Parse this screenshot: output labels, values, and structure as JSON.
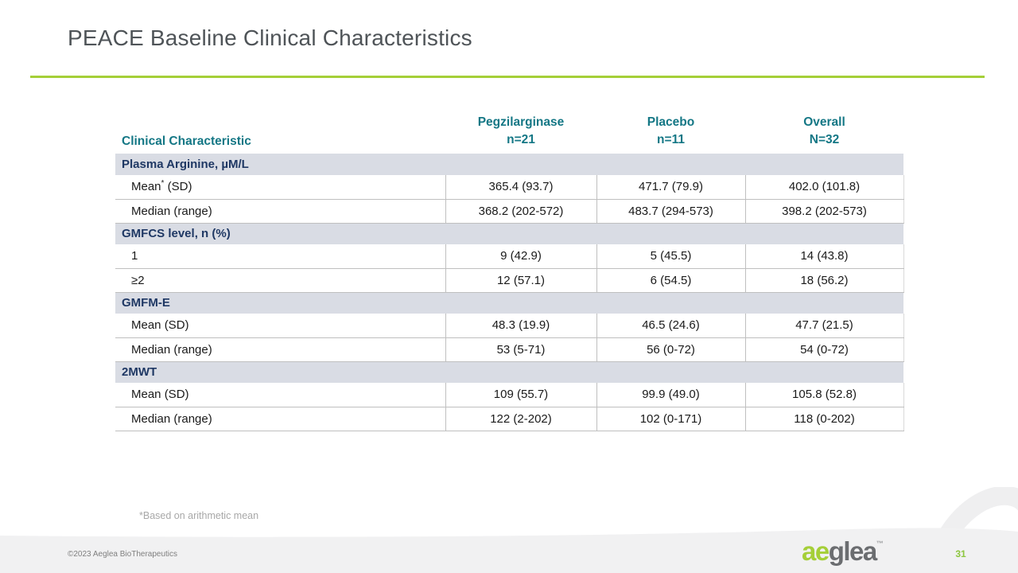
{
  "slide": {
    "title": "PEACE Baseline Clinical Characteristics",
    "footnote": "*Based on arithmetic mean",
    "copyright": "©2023 Aeglea BioTherapeutics",
    "page_number": "31",
    "logo": {
      "prefix": "ae",
      "suffix": "glea",
      "tm": "™"
    }
  },
  "colors": {
    "accent_green": "#a5cf38",
    "header_teal": "#147785",
    "section_navy": "#1f3864",
    "section_bg": "#d9dce4",
    "title_gray": "#4f5458",
    "footer_bg": "#f1f1f2",
    "border_gray": "#bfbfbf",
    "page_number_green": "#8dc63f"
  },
  "table": {
    "header": {
      "col0": "Clinical Characteristic",
      "col1": {
        "line1": "Pegzilarginase",
        "line2": "n=21"
      },
      "col2": {
        "line1": "Placebo",
        "line2": "n=11"
      },
      "col3": {
        "line1": "Overall",
        "line2": "N=32"
      }
    },
    "sections": [
      {
        "header": "Plasma Arginine, µM/L",
        "rows": [
          {
            "label": "Mean",
            "sup": "*",
            "label_post": " (SD)",
            "values": [
              "365.4 (93.7)",
              "471.7 (79.9)",
              "402.0 (101.8)"
            ]
          },
          {
            "label": "Median (range)",
            "sup": "",
            "label_post": "",
            "values": [
              "368.2 (202-572)",
              "483.7 (294-573)",
              "398.2 (202-573)"
            ]
          }
        ]
      },
      {
        "header": "GMFCS level, n (%)",
        "rows": [
          {
            "label": "1",
            "sup": "",
            "label_post": "",
            "values": [
              "9 (42.9)",
              "5 (45.5)",
              "14 (43.8)"
            ]
          },
          {
            "label": "≥2",
            "sup": "",
            "label_post": "",
            "values": [
              "12 (57.1)",
              "6 (54.5)",
              "18 (56.2)"
            ]
          }
        ]
      },
      {
        "header": "GMFM-E",
        "rows": [
          {
            "label": "Mean (SD)",
            "sup": "",
            "label_post": "",
            "values": [
              "48.3 (19.9)",
              "46.5 (24.6)",
              "47.7 (21.5)"
            ]
          },
          {
            "label": "Median (range)",
            "sup": "",
            "label_post": "",
            "values": [
              "53 (5-71)",
              "56 (0-72)",
              "54 (0-72)"
            ]
          }
        ]
      },
      {
        "header": "2MWT",
        "rows": [
          {
            "label": "Mean (SD)",
            "sup": "",
            "label_post": "",
            "values": [
              "109 (55.7)",
              "99.9 (49.0)",
              "105.8 (52.8)"
            ]
          },
          {
            "label": "Median (range)",
            "sup": "",
            "label_post": "",
            "values": [
              "122 (2-202)",
              "102 (0-171)",
              "118 (0-202)"
            ]
          }
        ]
      }
    ]
  }
}
